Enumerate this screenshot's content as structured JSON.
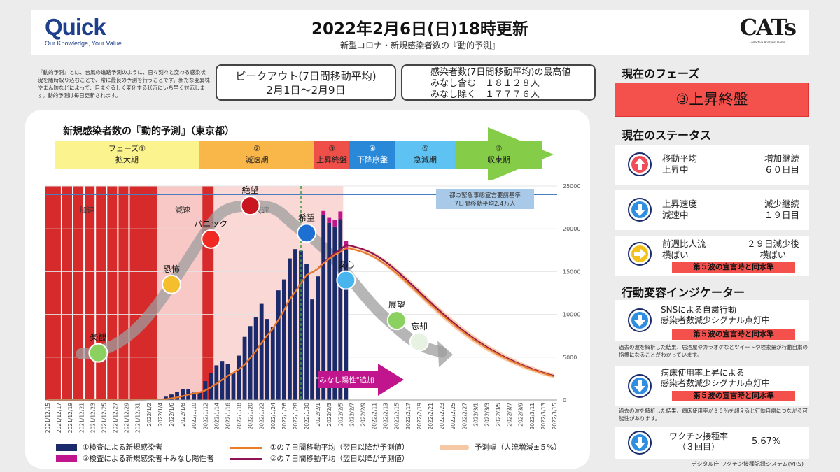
{
  "header": {
    "logo_left": "Quick",
    "logo_left_tagline": "Our Knowledge, Your Value.",
    "title": "2022年2月6日(日)18時更新",
    "subtitle": "新型コロナ・新規感染者数の『動的予測』",
    "logo_right": "CATs",
    "logo_right_tagline": "Collective Analysis Teams"
  },
  "intro": "『動的予測』とは、台風の進路予測のように、日々刻々と変わる感染状況を随時取り込むことで、常に最良の予測を行うことです。新たな変異株やまん防などによって、目まぐるしく変化する状況にいち早く対応します。動的予測は毎日更新されます。",
  "peak_box": {
    "line1": "ピークアウト(7日間移動平均)",
    "line2": "2月1日～2月9日"
  },
  "max_box": {
    "line1": "感染者数(7日間移動平均)の最高値",
    "line2": "みなし含む　１８１２８人",
    "line3": "みなし除く　１７７７６人"
  },
  "chart_title": "新規感染者数の『動的予測』（東京都）",
  "phases": [
    {
      "num": "フェーズ①",
      "label": "拡大期",
      "color": "#fbf38d"
    },
    {
      "num": "②",
      "label": "減速期",
      "color": "#f9b649"
    },
    {
      "num": "③",
      "label": "上昇終盤",
      "color": "#ef4f49"
    },
    {
      "num": "④",
      "label": "下降序盤",
      "color": "#2a88d8"
    },
    {
      "num": "⑤",
      "label": "急減期",
      "color": "#5ec2f3"
    },
    {
      "num": "⑥",
      "label": "収束期",
      "color": "#85cc48"
    }
  ],
  "chart_data": {
    "type": "bar",
    "x": [
      "2021/12/15",
      "2021/12/16",
      "2021/12/17",
      "2021/12/18",
      "2021/12/19",
      "2021/12/20",
      "2021/12/21",
      "2021/12/22",
      "2021/12/23",
      "2021/12/24",
      "2021/12/25",
      "2021/12/26",
      "2021/12/27",
      "2021/12/28",
      "2021/12/29",
      "2021/12/30",
      "2021/12/31",
      "2022/1/1",
      "2022/1/2",
      "2022/1/3",
      "2022/1/4",
      "2022/1/5",
      "2022/1/6",
      "2022/1/7",
      "2022/1/8",
      "2022/1/9",
      "2022/1/10",
      "2022/1/11",
      "2022/1/12",
      "2022/1/13",
      "2022/1/14",
      "2022/1/15",
      "2022/1/16",
      "2022/1/17",
      "2022/1/18",
      "2022/1/19",
      "2022/1/20",
      "2022/1/21",
      "2022/1/22",
      "2022/1/23",
      "2022/1/24",
      "2022/1/25",
      "2022/1/26",
      "2022/1/27",
      "2022/1/28",
      "2022/1/29",
      "2022/1/30",
      "2022/1/31",
      "2022/2/1",
      "2022/2/2",
      "2022/2/3",
      "2022/2/4",
      "2022/2/5",
      "2022/2/6",
      "2022/2/7",
      "2022/2/8",
      "2022/2/9",
      "2022/2/10",
      "2022/2/11",
      "2022/2/12",
      "2022/2/13",
      "2022/2/14",
      "2022/2/15",
      "2022/2/16",
      "2022/2/17",
      "2022/2/18",
      "2022/2/19",
      "2022/2/20",
      "2022/2/21",
      "2022/2/22",
      "2022/2/23",
      "2022/2/24",
      "2022/2/25",
      "2022/2/26",
      "2022/2/27",
      "2022/2/28",
      "2022/3/1",
      "2022/3/2",
      "2022/3/3",
      "2022/3/4",
      "2022/3/5",
      "2022/3/6",
      "2022/3/7",
      "2022/3/8",
      "2022/3/9",
      "2022/3/10",
      "2022/3/11",
      "2022/3/12",
      "2022/3/13",
      "2022/3/14",
      "2022/3/15"
    ],
    "x_tick_labels": [
      "2021/12/15",
      "2021/12/17",
      "2021/12/19",
      "2021/12/21",
      "2021/12/23",
      "2021/12/25",
      "2021/12/27",
      "2021/12/29",
      "2021/12/31",
      "2022/1/2",
      "2022/1/4",
      "2022/1/6",
      "2022/1/8",
      "2022/1/10",
      "2022/1/12",
      "2022/1/14",
      "2022/1/16",
      "2022/1/18",
      "2022/1/20",
      "2022/1/22",
      "2022/1/24",
      "2022/1/26",
      "2022/1/28",
      "2022/1/30",
      "2022/2/1",
      "2022/2/3",
      "2022/2/5",
      "2022/2/7",
      "2022/2/9",
      "2022/2/11",
      "2022/2/13",
      "2022/2/15",
      "2022/2/17",
      "2022/2/19",
      "2022/2/21",
      "2022/2/23",
      "2022/2/25",
      "2022/2/27",
      "2022/3/1",
      "2022/3/3",
      "2022/3/5",
      "2022/3/7",
      "2022/3/9",
      "2022/3/11",
      "2022/3/13",
      "2022/3/15"
    ],
    "y_ticks": [
      "0",
      "5000",
      "10000",
      "15000",
      "20000",
      "25000"
    ],
    "ylim": [
      0,
      25000
    ],
    "cases": [
      21,
      9,
      10,
      12,
      16,
      9,
      11,
      14,
      14,
      18,
      14,
      17,
      13,
      52,
      33,
      64,
      78,
      60,
      84,
      103,
      151,
      390,
      641,
      922,
      1224,
      1223,
      871,
      962,
      2198,
      3124,
      4051,
      4561,
      4172,
      3117,
      5185,
      7377,
      8638,
      9699,
      11227,
      9468,
      8503,
      12813,
      14086,
      16538,
      17631,
      17433,
      15895,
      11751,
      14445,
      21576,
      20679,
      20277,
      21122,
      17526
    ],
    "cases_incl_minashi": [
      21,
      9,
      10,
      12,
      16,
      9,
      11,
      14,
      14,
      18,
      14,
      17,
      13,
      52,
      33,
      64,
      78,
      60,
      84,
      103,
      151,
      390,
      641,
      922,
      1224,
      1223,
      871,
      962,
      2198,
      3124,
      4051,
      4561,
      4172,
      3117,
      5185,
      7377,
      8638,
      9699,
      11227,
      9468,
      8503,
      12813,
      14086,
      16538,
      17631,
      17433,
      15895,
      11751,
      14445,
      21576,
      20679,
      20277,
      21122,
      17526
    ],
    "minashi_extra": [
      0,
      0,
      0,
      0,
      0,
      0,
      0,
      0,
      0,
      0,
      0,
      0,
      0,
      0,
      0,
      0,
      0,
      0,
      0,
      0,
      0,
      0,
      0,
      0,
      0,
      0,
      0,
      0,
      0,
      0,
      0,
      0,
      0,
      0,
      0,
      0,
      0,
      0,
      0,
      0,
      0,
      0,
      0,
      0,
      0,
      0,
      0,
      0,
      0,
      0,
      0,
      0,
      0,
      0,
      0,
      0,
      0,
      0,
      0,
      0,
      0,
      0,
      0,
      0,
      0,
      0,
      0,
      0,
      0,
      0,
      0,
      0,
      0,
      0,
      0,
      0,
      0,
      0,
      0,
      0,
      0,
      0,
      0,
      0,
      0,
      0,
      0,
      0,
      0,
      0,
      0
    ],
    "minashi_extra_recent": [
      0,
      0,
      0,
      0,
      0,
      0,
      0,
      0,
      0,
      0,
      0,
      0,
      0,
      0,
      0,
      0,
      0,
      0,
      0,
      0,
      0,
      0,
      0,
      0,
      0,
      0,
      0,
      0,
      0,
      0,
      0,
      0,
      0,
      0,
      0,
      0,
      0,
      0,
      0,
      0,
      0,
      0,
      0,
      0,
      0,
      0,
      0,
      0,
      0,
      500,
      600,
      800,
      900,
      1100
    ],
    "ma7_incl_forecast": [
      24,
      22,
      20,
      19,
      17,
      16,
      15,
      14,
      14,
      14,
      14,
      14,
      15,
      20,
      22,
      28,
      35,
      42,
      47,
      55,
      64,
      106,
      186,
      299,
      451,
      619,
      757,
      879,
      1117,
      1475,
      1901,
      2366,
      2834,
      3155,
      3610,
      4135,
      4933,
      5712,
      6668,
      7561,
      8312,
      9372,
      10478,
      11741,
      12654,
      13649,
      14615,
      14918,
      15330,
      15968,
      16488,
      16967,
      17302,
      17776,
      17650,
      17470,
      17280,
      17020,
      16700,
      16300,
      15850,
      15350,
      14800,
      14230,
      13630,
      13020,
      12400,
      11780,
      11170,
      10570,
      9990,
      9420,
      8880,
      8350,
      7850,
      7370,
      6910,
      6480,
      6070,
      5690,
      5320,
      4980,
      4660,
      4360,
      4080,
      3810,
      3570,
      3340,
      3130,
      2930,
      2740
    ],
    "ma7_incl_minashi_forecast": [
      24,
      22,
      20,
      19,
      17,
      16,
      15,
      14,
      14,
      14,
      14,
      14,
      15,
      20,
      22,
      28,
      35,
      42,
      47,
      55,
      64,
      106,
      186,
      299,
      451,
      619,
      757,
      879,
      1117,
      1475,
      1901,
      2366,
      2834,
      3155,
      3610,
      4135,
      4933,
      5712,
      6668,
      7561,
      8312,
      9372,
      10478,
      11741,
      12654,
      13649,
      14615,
      14918,
      15330,
      16040,
      16620,
      17160,
      17560,
      18128,
      18000,
      17820,
      17620,
      17360,
      17030,
      16620,
      16160,
      15650,
      15090,
      14510,
      13900,
      13280,
      12650,
      12020,
      11400,
      10790,
      10200,
      9620,
      9070,
      8530,
      8020,
      7530,
      7060,
      6620,
      6200,
      5810,
      5440,
      5090,
      4770,
      4460,
      4170,
      3900,
      3650,
      3420,
      3200,
      3000,
      2810
    ],
    "forecast_band_pct": 5,
    "emergency_threshold": 24000,
    "emergency_label_line1": "都の緊急事態宣言要請基準",
    "emergency_label_line2": "7日間移動平均2.4万人",
    "zones": [
      {
        "label": "加速"
      },
      {
        "label": "減速"
      },
      {
        "label": "減速"
      }
    ],
    "emotions": [
      {
        "label": "楽観",
        "color": "#8bd160"
      },
      {
        "label": "恐怖",
        "color": "#f5be2c"
      },
      {
        "label": "パニック",
        "color": "#f02a23"
      },
      {
        "label": "絶望",
        "color": "#c9151f"
      },
      {
        "label": "希望",
        "color": "#1d6fd1"
      },
      {
        "label": "安心",
        "color": "#48b5ef"
      },
      {
        "label": "展望",
        "color": "#8bd160"
      },
      {
        "label": "忘却",
        "color": "#e8f2e2"
      }
    ],
    "minashi_arrow_label": "\"みなし陽性\"追加",
    "legend": [
      {
        "name": "①検査による新規感染者",
        "color": "#1b2a6b",
        "kind": "bar"
      },
      {
        "name": "②検査による新規感染者＋みなし陽性者",
        "color": "#c0158c",
        "kind": "bar"
      },
      {
        "name": "①の７日間移動平均（翌日以降が予測値）",
        "color": "#e87c2b",
        "kind": "line"
      },
      {
        "name": "②の７日間移動平均（翌日以降が予測値）",
        "color": "#8e1455",
        "kind": "line"
      },
      {
        "name": "予測幅（人流増減±５%）",
        "color": "#f6c9a6",
        "kind": "band"
      }
    ]
  },
  "sidebar": {
    "phase_title": "現在のフェーズ",
    "phase_value": "③上昇終盤",
    "status_title": "現在のステータス",
    "status_cards": [
      {
        "icon": "up-arrow-icon",
        "l1": "移動平均",
        "l2": "上昇中",
        "r1": "増加継続",
        "r2": "６０日目",
        "tag": ""
      },
      {
        "icon": "down-arrow-icon",
        "l1": "上昇速度",
        "l2": "減速中",
        "r1": "減少継続",
        "r2": "１９日目",
        "tag": ""
      },
      {
        "icon": "right-arrow-icon",
        "l1": "前週比人流",
        "l2": "横ばい",
        "r1": "２９日減少後",
        "r2": "横ばい",
        "tag": "第５波の宣言時と同水準"
      }
    ],
    "indicator_title": "行動変容インジケーター",
    "indicators": [
      {
        "l1": "SNSによる自粛行動",
        "l2": "感染者数減少シグナル点灯中",
        "tag": "第５波の宣言時と同水準",
        "note": "過去の波を解析した結果、居酒屋やカラオケなどツイートや検索量が行動自粛の指標になることがわかっています。"
      },
      {
        "l1": "病床使用率上昇による",
        "l2": "感染者数減少シグナル点灯中",
        "tag": "第５波の宣言時と同水準",
        "note": "過去の波を解析した結果、病床使用率が３５％を超えると行動自粛につながる可能性があります。"
      }
    ],
    "vaccine": {
      "l1": "ワクチン接種率",
      "l2": "（３回目）",
      "value": "5.67%"
    },
    "source": "デジタル庁 ワクチン接種記録システム(VRS)"
  }
}
